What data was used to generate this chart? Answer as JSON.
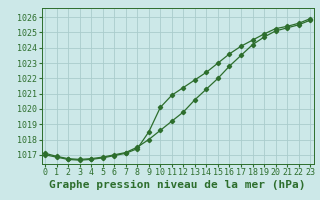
{
  "title": "Graphe pression niveau de la mer (hPa)",
  "bg_color": "#cce8e8",
  "grid_color": "#aacccc",
  "line_color": "#2d6e2d",
  "xlim": [
    -0.3,
    23.3
  ],
  "ylim": [
    1016.4,
    1026.6
  ],
  "yticks": [
    1017,
    1018,
    1019,
    1020,
    1021,
    1022,
    1023,
    1024,
    1025,
    1026
  ],
  "xticks": [
    0,
    1,
    2,
    3,
    4,
    5,
    6,
    7,
    8,
    9,
    10,
    11,
    12,
    13,
    14,
    15,
    16,
    17,
    18,
    19,
    20,
    21,
    22,
    23
  ],
  "line1_x": [
    0,
    1,
    2,
    3,
    4,
    5,
    6,
    7,
    8,
    9,
    10,
    11,
    12,
    13,
    14,
    15,
    16,
    17,
    18,
    19,
    20,
    21,
    22,
    23
  ],
  "line1_y": [
    1017.1,
    1016.9,
    1016.75,
    1016.7,
    1016.75,
    1016.85,
    1017.0,
    1017.15,
    1017.5,
    1018.0,
    1018.6,
    1019.2,
    1019.8,
    1020.6,
    1021.3,
    1022.0,
    1022.8,
    1023.5,
    1024.2,
    1024.7,
    1025.1,
    1025.3,
    1025.5,
    1025.8
  ],
  "line2_x": [
    0,
    1,
    2,
    3,
    4,
    5,
    6,
    7,
    8,
    9,
    10,
    11,
    12,
    13,
    14,
    15,
    16,
    17,
    18,
    19,
    20,
    21,
    22,
    23
  ],
  "line2_y": [
    1017.0,
    1016.85,
    1016.7,
    1016.65,
    1016.7,
    1016.8,
    1016.95,
    1017.1,
    1017.4,
    1018.5,
    1020.1,
    1020.9,
    1021.4,
    1021.9,
    1022.4,
    1023.0,
    1023.6,
    1024.1,
    1024.5,
    1024.9,
    1025.25,
    1025.4,
    1025.6,
    1025.9
  ],
  "title_fontsize": 8,
  "tick_fontsize": 6
}
